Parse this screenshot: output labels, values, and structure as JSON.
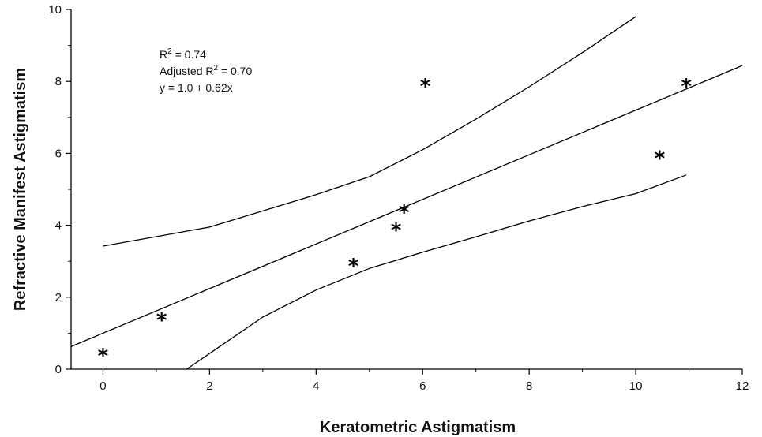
{
  "chart_data": {
    "type": "scatter",
    "title": "",
    "xlabel": "Keratometric Astigmatism",
    "ylabel": "Refractive Manifest Astigmatism",
    "xlim": [
      -0.6,
      12
    ],
    "ylim": [
      0,
      10
    ],
    "x_ticks": [
      0,
      2,
      4,
      6,
      8,
      10,
      12
    ],
    "y_ticks": [
      0,
      2,
      4,
      6,
      8,
      10
    ],
    "x_tick_labels": [
      "0",
      "2",
      "4",
      "6",
      "8",
      "10",
      "12"
    ],
    "y_tick_labels": [
      "0",
      "2",
      "4",
      "6",
      "8",
      "10"
    ],
    "grid": false,
    "marker": "*",
    "points": [
      {
        "x": 0.0,
        "y": 0.5
      },
      {
        "x": 1.1,
        "y": 1.5
      },
      {
        "x": 4.7,
        "y": 3.0
      },
      {
        "x": 5.5,
        "y": 4.0
      },
      {
        "x": 5.65,
        "y": 4.5
      },
      {
        "x": 6.05,
        "y": 8.0
      },
      {
        "x": 10.45,
        "y": 6.0
      },
      {
        "x": 10.95,
        "y": 8.0
      }
    ],
    "regression": {
      "intercept": 1.0,
      "slope": 0.62,
      "x_range": [
        -0.6,
        12
      ]
    },
    "confidence_band": {
      "upper": [
        [
          0.0,
          3.42
        ],
        [
          2.0,
          3.95
        ],
        [
          4.0,
          4.85
        ],
        [
          5.0,
          5.35
        ],
        [
          6.0,
          6.1
        ],
        [
          7.0,
          6.95
        ],
        [
          8.0,
          7.85
        ],
        [
          9.0,
          8.8
        ],
        [
          10.0,
          9.8
        ]
      ],
      "lower": [
        [
          1.57,
          0.0
        ],
        [
          3.0,
          1.45
        ],
        [
          4.0,
          2.2
        ],
        [
          5.0,
          2.8
        ],
        [
          6.0,
          3.25
        ],
        [
          7.0,
          3.68
        ],
        [
          8.0,
          4.12
        ],
        [
          9.0,
          4.52
        ],
        [
          10.0,
          4.88
        ],
        [
          10.95,
          5.4
        ]
      ]
    },
    "annotations": {
      "r2_prefix": "R",
      "r2_sup": "2",
      "r2_value": " = 0.74",
      "adj_prefix": "Adjusted R",
      "adj_sup": "2",
      "adj_value": " = 0.70",
      "equation": "y = 1.0 + 0.62x"
    }
  }
}
